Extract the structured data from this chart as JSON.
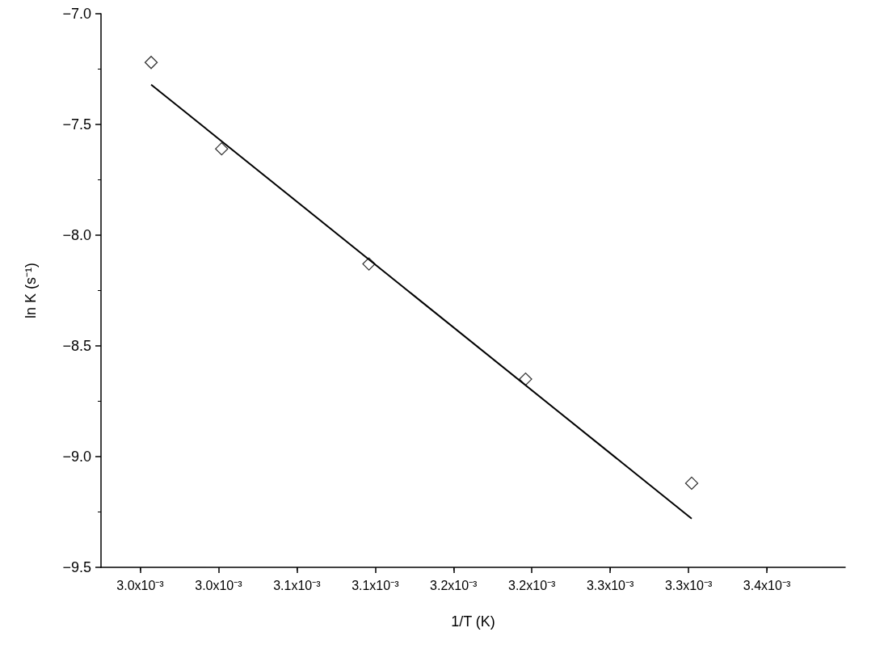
{
  "chart_data": {
    "type": "scatter",
    "xlabel": "1/T (K)",
    "ylabel": "ln K (s⁻¹)",
    "xlim": [
      0.002925,
      0.0034
    ],
    "xticks": [
      {
        "value": 0.00295,
        "label": "3.0x10⁻³"
      },
      {
        "value": 0.003,
        "label": "3.0x10⁻³"
      },
      {
        "value": 0.00305,
        "label": "3.1x10⁻³"
      },
      {
        "value": 0.0031,
        "label": "3.1x10⁻³"
      },
      {
        "value": 0.00315,
        "label": "3.2x10⁻³"
      },
      {
        "value": 0.0032,
        "label": "3.2x10⁻³"
      },
      {
        "value": 0.00325,
        "label": "3.3x10⁻³"
      },
      {
        "value": 0.0033,
        "label": "3.3x10⁻³"
      },
      {
        "value": 0.00335,
        "label": "3.4x10⁻³"
      }
    ],
    "ylim": [
      -9.5,
      -7.0
    ],
    "yticks": [
      {
        "value": -7.0,
        "label": "−7.0"
      },
      {
        "value": -7.5,
        "label": "−7.5"
      },
      {
        "value": -8.0,
        "label": "−8.0"
      },
      {
        "value": -8.5,
        "label": "−8.5"
      },
      {
        "value": -9.0,
        "label": "−9.0"
      },
      {
        "value": -9.5,
        "label": "−9.5"
      }
    ],
    "grid": false,
    "series": [
      {
        "marker": "diamond",
        "color": "#000000",
        "x": [
          0.002957,
          0.003002,
          0.003096,
          0.003196,
          0.003302
        ],
        "values": [
          -7.22,
          -7.61,
          -8.13,
          -8.65,
          -9.12
        ]
      },
      {
        "type": "line",
        "marker": "none",
        "line_style": "solid",
        "color": "#000000",
        "x": [
          0.002957,
          0.003302
        ],
        "values": [
          -7.32,
          -9.28
        ]
      }
    ]
  }
}
